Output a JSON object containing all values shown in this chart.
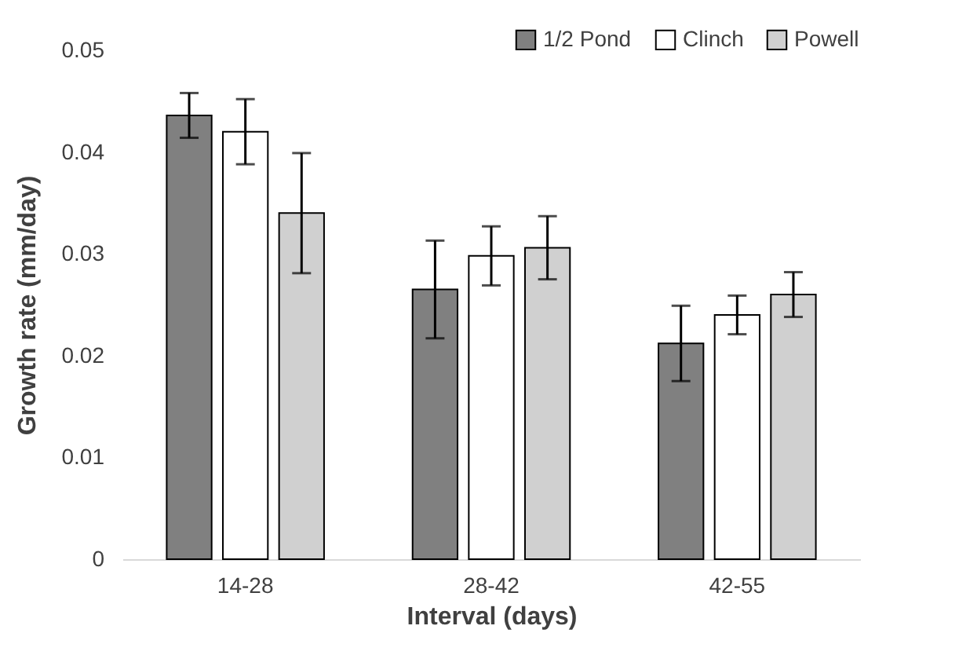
{
  "chart_data": {
    "type": "bar",
    "xlabel": "Interval (days)",
    "ylabel": "Growth rate (mm/day)",
    "categories": [
      "14-28",
      "28-42",
      "42-55"
    ],
    "series": [
      {
        "name": "1/2 Pond",
        "color": "#808080",
        "values": [
          0.0436,
          0.0265,
          0.0212
        ],
        "errors": [
          0.0022,
          0.0048,
          0.0037
        ]
      },
      {
        "name": "Clinch",
        "color": "#ffffff",
        "values": [
          0.042,
          0.0298,
          0.024
        ],
        "errors": [
          0.0032,
          0.0029,
          0.0019
        ]
      },
      {
        "name": "Powell",
        "color": "#d0d0d0",
        "values": [
          0.034,
          0.0306,
          0.026
        ],
        "errors": [
          0.0059,
          0.0031,
          0.0022
        ]
      }
    ],
    "ylim": [
      0,
      0.05
    ],
    "yticks": [
      0,
      0.01,
      0.02,
      0.03,
      0.04,
      0.05
    ],
    "grid": false,
    "legend": "top right"
  }
}
